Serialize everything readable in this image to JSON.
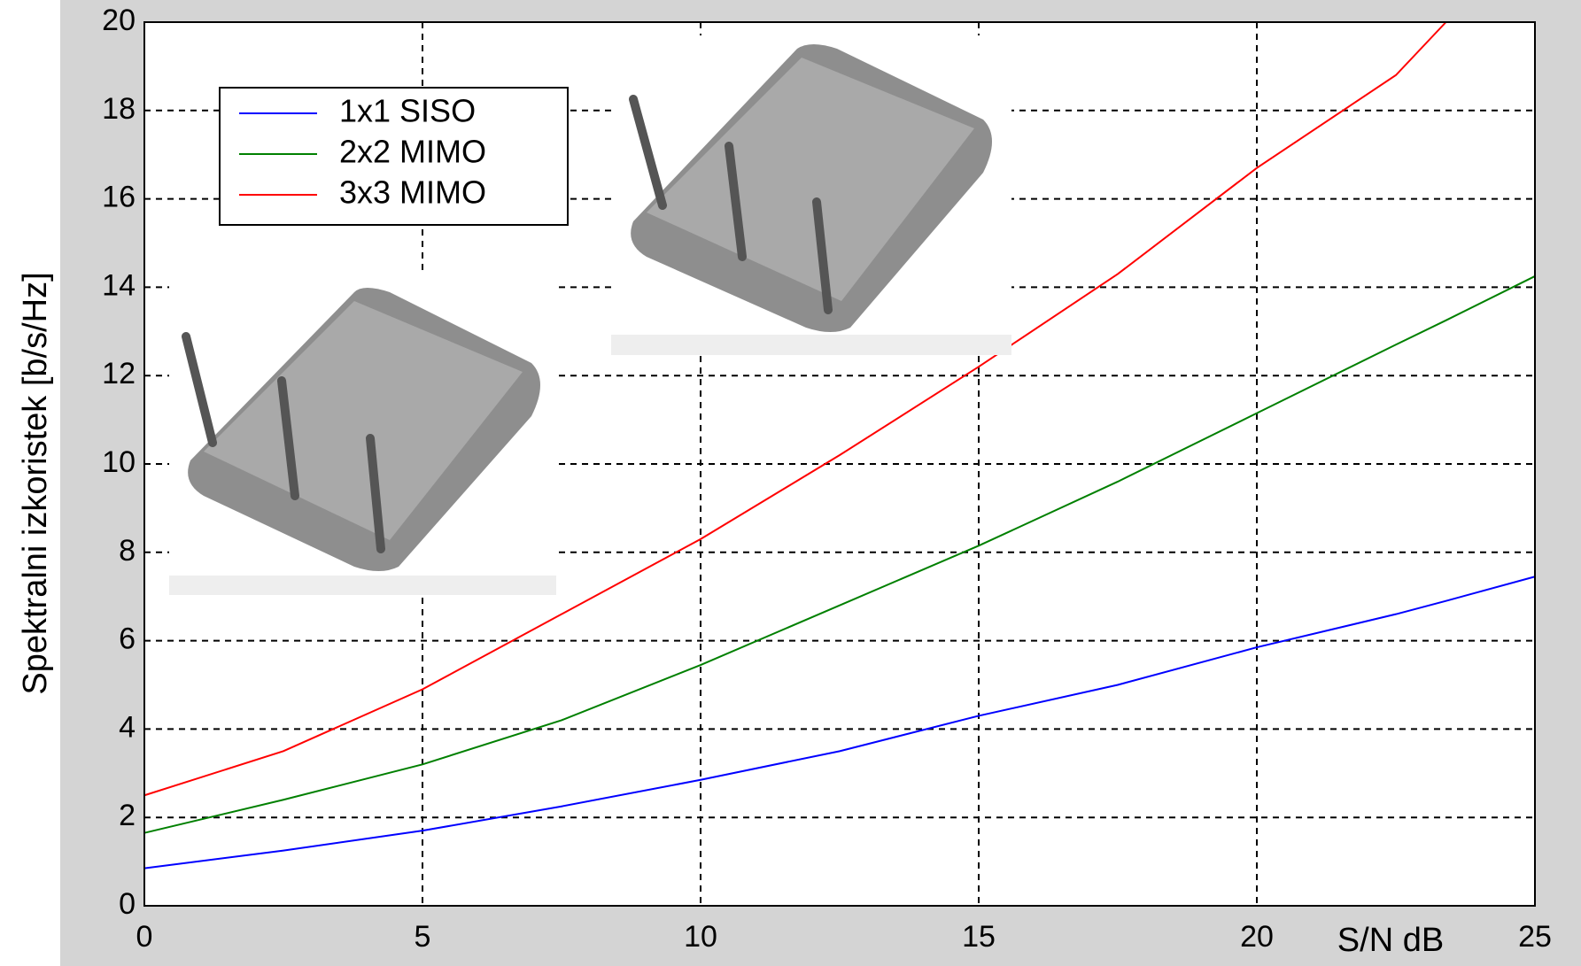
{
  "chart_data": {
    "type": "line",
    "x_label": "S/N dB",
    "y_label": "Spektralni izkoristek [b/s/Hz]",
    "x": [
      0,
      2.5,
      5,
      7.5,
      10,
      12.5,
      15,
      17.5,
      20,
      22.5,
      23.4,
      25
    ],
    "series": [
      {
        "name": "1x1 SISO",
        "color": "#0000ff",
        "values": [
          0.85,
          1.25,
          1.7,
          2.25,
          2.85,
          3.5,
          4.3,
          5.0,
          5.85,
          6.6,
          6.9,
          7.45
        ]
      },
      {
        "name": "2x2 MIMO",
        "color": "#008000",
        "values": [
          1.65,
          2.4,
          3.2,
          4.2,
          5.45,
          6.8,
          8.15,
          9.6,
          11.15,
          12.7,
          13.25,
          14.25
        ]
      },
      {
        "name": "3x3 MIMO",
        "color": "#ff0000",
        "values": [
          2.5,
          3.5,
          4.9,
          6.6,
          8.3,
          10.2,
          12.2,
          14.3,
          16.7,
          18.8,
          20,
          null
        ]
      }
    ],
    "xlim": [
      0,
      25
    ],
    "xticks": [
      0,
      5,
      10,
      15,
      20,
      25
    ],
    "ylim": [
      0,
      20
    ],
    "yticks": [
      0,
      2,
      4,
      6,
      8,
      10,
      12,
      14,
      16,
      18,
      20
    ],
    "grid": true,
    "legend": "upper left"
  }
}
